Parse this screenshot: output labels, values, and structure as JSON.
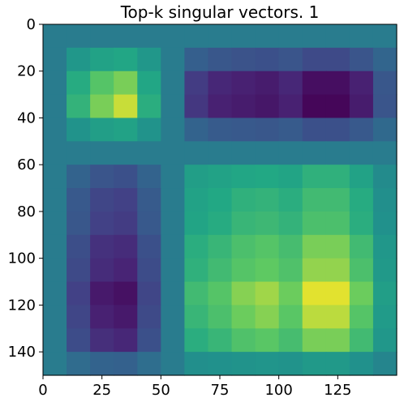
{
  "chart_data": {
    "type": "heatmap",
    "title": "Top-k singular vectors. 1",
    "colormap": "viridis",
    "xlim": [
      0,
      150
    ],
    "ylim": [
      150,
      0
    ],
    "x_ticks": [
      0,
      25,
      50,
      75,
      100,
      125
    ],
    "y_ticks": [
      0,
      20,
      40,
      60,
      80,
      100,
      120,
      140
    ],
    "block_size": 10,
    "grid": false,
    "normalized_values": [
      [
        0.52,
        0.52,
        0.52,
        0.52,
        0.52,
        0.52,
        0.52,
        0.52,
        0.52,
        0.52,
        0.52,
        0.52,
        0.52,
        0.52,
        0.52
      ],
      [
        0.52,
        0.66,
        0.72,
        0.74,
        0.66,
        0.52,
        0.38,
        0.34,
        0.32,
        0.31,
        0.33,
        0.28,
        0.28,
        0.33,
        0.41
      ],
      [
        0.52,
        0.76,
        0.86,
        0.9,
        0.74,
        0.52,
        0.22,
        0.14,
        0.12,
        0.1,
        0.14,
        0.05,
        0.05,
        0.12,
        0.34
      ],
      [
        0.52,
        0.79,
        0.9,
        0.96,
        0.77,
        0.52,
        0.2,
        0.12,
        0.1,
        0.08,
        0.12,
        0.02,
        0.02,
        0.1,
        0.33
      ],
      [
        0.52,
        0.64,
        0.7,
        0.72,
        0.64,
        0.52,
        0.4,
        0.36,
        0.35,
        0.34,
        0.36,
        0.31,
        0.31,
        0.35,
        0.43
      ],
      [
        0.52,
        0.52,
        0.52,
        0.52,
        0.52,
        0.52,
        0.52,
        0.52,
        0.52,
        0.52,
        0.52,
        0.52,
        0.52,
        0.52,
        0.52
      ],
      [
        0.52,
        0.4,
        0.33,
        0.31,
        0.4,
        0.52,
        0.7,
        0.72,
        0.74,
        0.75,
        0.73,
        0.78,
        0.78,
        0.72,
        0.6
      ],
      [
        0.52,
        0.35,
        0.26,
        0.24,
        0.36,
        0.52,
        0.72,
        0.75,
        0.78,
        0.79,
        0.77,
        0.82,
        0.82,
        0.76,
        0.62
      ],
      [
        0.52,
        0.34,
        0.24,
        0.22,
        0.35,
        0.52,
        0.73,
        0.76,
        0.8,
        0.81,
        0.79,
        0.84,
        0.84,
        0.77,
        0.63
      ],
      [
        0.52,
        0.3,
        0.18,
        0.16,
        0.31,
        0.52,
        0.77,
        0.8,
        0.84,
        0.86,
        0.83,
        0.9,
        0.9,
        0.82,
        0.66
      ],
      [
        0.52,
        0.28,
        0.16,
        0.13,
        0.29,
        0.52,
        0.78,
        0.82,
        0.86,
        0.88,
        0.85,
        0.92,
        0.92,
        0.84,
        0.67
      ],
      [
        0.52,
        0.24,
        0.09,
        0.06,
        0.26,
        0.52,
        0.82,
        0.86,
        0.91,
        0.93,
        0.89,
        0.98,
        0.98,
        0.89,
        0.7
      ],
      [
        0.52,
        0.26,
        0.12,
        0.09,
        0.28,
        0.52,
        0.8,
        0.84,
        0.89,
        0.91,
        0.87,
        0.95,
        0.95,
        0.86,
        0.68
      ],
      [
        0.52,
        0.29,
        0.17,
        0.14,
        0.31,
        0.52,
        0.77,
        0.8,
        0.85,
        0.87,
        0.83,
        0.9,
        0.9,
        0.82,
        0.66
      ],
      [
        0.52,
        0.44,
        0.4,
        0.39,
        0.45,
        0.52,
        0.62,
        0.63,
        0.64,
        0.65,
        0.64,
        0.67,
        0.67,
        0.63,
        0.57
      ]
    ]
  }
}
